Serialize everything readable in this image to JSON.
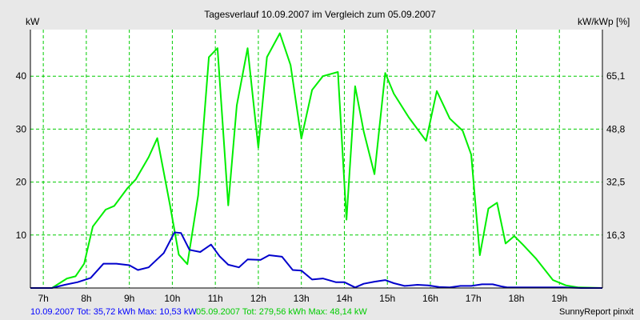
{
  "chart_data": {
    "type": "line",
    "title": "Tagesverlauf 10.09.2007 im Vergleich zum 05.09.2007",
    "ylabel_left": "kW",
    "ylabel_right": "kW/kWp [%]",
    "ylim": [
      0,
      48.8
    ],
    "xlim": [
      6.7,
      20.0
    ],
    "x_ticks": [
      7,
      8,
      9,
      10,
      11,
      12,
      13,
      14,
      15,
      16,
      17,
      18,
      19
    ],
    "x_tick_labels": [
      "7h",
      "8h",
      "9h",
      "10h",
      "11h",
      "12h",
      "13h",
      "14h",
      "15h",
      "16h",
      "17h",
      "18h",
      "19h"
    ],
    "y_ticks_left": [
      10,
      20,
      30,
      40
    ],
    "y_ticks_right": [
      {
        "label": "16,3",
        "value": 10
      },
      {
        "label": "32,5",
        "value": 20
      },
      {
        "label": "48,8",
        "value": 30
      },
      {
        "label": "65,1",
        "value": 40
      }
    ],
    "grid": true,
    "series": [
      {
        "name": "05.09.2007",
        "color": "#00ee00",
        "x": [
          6.7,
          7.2,
          7.55,
          7.75,
          7.95,
          8.15,
          8.45,
          8.65,
          8.95,
          9.15,
          9.45,
          9.65,
          9.95,
          10.15,
          10.35,
          10.6,
          10.85,
          11.05,
          11.3,
          11.5,
          11.75,
          12.0,
          12.2,
          12.5,
          12.75,
          13.0,
          13.25,
          13.5,
          13.85,
          14.05,
          14.25,
          14.45,
          14.7,
          14.95,
          15.15,
          15.5,
          15.9,
          16.15,
          16.45,
          16.75,
          16.95,
          17.15,
          17.35,
          17.55,
          17.75,
          17.95,
          18.15,
          18.45,
          18.85,
          19.15,
          19.45,
          20.0
        ],
        "values": [
          0,
          0,
          1.8,
          2.2,
          4.6,
          11.6,
          14.8,
          15.5,
          18.8,
          20.5,
          24.7,
          28.3,
          15.5,
          6.3,
          4.5,
          17.5,
          43.6,
          45.3,
          15.6,
          34.5,
          45.3,
          26.5,
          43.6,
          48.1,
          42.1,
          28.2,
          37.4,
          40.0,
          40.8,
          12.9,
          38.1,
          29.6,
          21.5,
          40.6,
          36.7,
          32.2,
          27.8,
          37.2,
          32.0,
          29.7,
          25.2,
          6.2,
          15.0,
          16.1,
          8.4,
          9.8,
          8.2,
          5.6,
          1.5,
          0.5,
          0.1,
          0
        ]
      },
      {
        "name": "10.09.2007",
        "color": "#0000cc",
        "x": [
          6.7,
          7.2,
          7.5,
          7.8,
          8.1,
          8.4,
          8.7,
          9.0,
          9.2,
          9.45,
          9.8,
          10.05,
          10.2,
          10.4,
          10.65,
          10.9,
          11.1,
          11.3,
          11.55,
          11.75,
          12.05,
          12.25,
          12.55,
          12.8,
          13.0,
          13.25,
          13.5,
          13.8,
          14.0,
          14.25,
          14.45,
          14.7,
          14.95,
          15.15,
          15.4,
          15.7,
          15.95,
          16.2,
          16.45,
          16.7,
          16.95,
          17.2,
          17.45,
          17.65,
          17.8,
          18.0,
          18.2,
          18.5,
          18.8,
          19.1,
          19.5,
          20.0
        ],
        "values": [
          0,
          0,
          0.6,
          1.1,
          1.9,
          4.6,
          4.6,
          4.3,
          3.4,
          3.9,
          6.6,
          10.5,
          10.4,
          7.2,
          6.8,
          8.2,
          6.0,
          4.4,
          3.9,
          5.4,
          5.3,
          6.2,
          5.9,
          3.4,
          3.3,
          1.6,
          1.8,
          1.1,
          1.1,
          0.1,
          0.8,
          1.2,
          1.5,
          0.9,
          0.4,
          0.6,
          0.5,
          0.2,
          0.1,
          0.4,
          0.4,
          0.7,
          0.7,
          0.3,
          0.1,
          0.1,
          0.1,
          0.1,
          0.1,
          0.1,
          0,
          0
        ]
      }
    ]
  },
  "footer": {
    "blue": "10.09.2007 Tot: 35,72 kWh Max: 10,53 kW",
    "green": "05.09.2007 Tot: 279,56 kWh Max: 48,14 kW",
    "right": "SunnyReport pinxit"
  },
  "colors": {
    "background": "#e8e8e8",
    "plot_area": "#ffffff",
    "grid": "#00cc00",
    "series_green": "#00ee00",
    "series_blue": "#0000cc"
  }
}
